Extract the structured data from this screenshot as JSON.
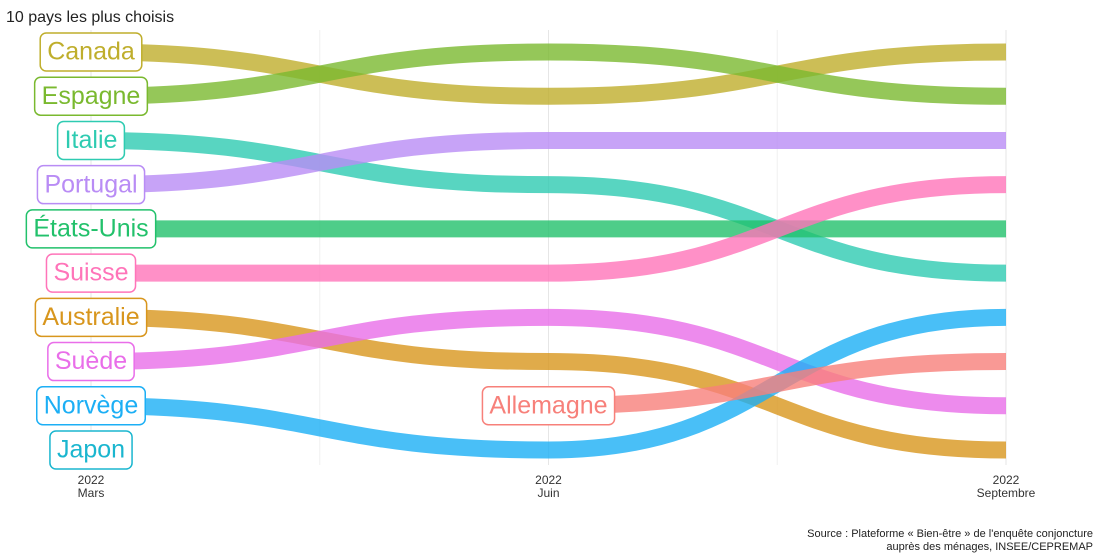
{
  "chart_data": {
    "type": "bump",
    "title": "10 pays les plus choisis",
    "categories": [
      "Mars",
      "Juin",
      "Septembre"
    ],
    "category_years": [
      "2022",
      "2022",
      "2022"
    ],
    "ylim": [
      0.5,
      10.5
    ],
    "series": [
      {
        "name": "Canada",
        "color": "#bfae2c",
        "values": [
          1,
          2,
          1
        ]
      },
      {
        "name": "Espagne",
        "color": "#7ab92f",
        "values": [
          2,
          1,
          2
        ]
      },
      {
        "name": "Italie",
        "color": "#2ecbb1",
        "values": [
          3,
          4,
          6
        ]
      },
      {
        "name": "Portugal",
        "color": "#b98cf5",
        "values": [
          4,
          3,
          3
        ]
      },
      {
        "name": "États-Unis",
        "color": "#22c16b",
        "values": [
          5,
          5,
          5
        ]
      },
      {
        "name": "Suisse",
        "color": "#ff74b9",
        "values": [
          6,
          6,
          4
        ]
      },
      {
        "name": "Australie",
        "color": "#d8961d",
        "values": [
          7,
          8,
          10
        ]
      },
      {
        "name": "Suède",
        "color": "#e96ee9",
        "values": [
          8,
          7,
          9
        ]
      },
      {
        "name": "Norvège",
        "color": "#1caff5",
        "values": [
          9,
          10,
          7
        ]
      },
      {
        "name": "Japon",
        "color": "#1ab6cf",
        "values": [
          10,
          null,
          null
        ]
      },
      {
        "name": "Allemagne",
        "color": "#f7807a",
        "values": [
          null,
          9,
          8
        ]
      }
    ],
    "source": [
      "Source : Plateforme « Bien-être » de l'enquête conjoncture",
      "auprès des ménages, INSEE/CEPREMAP"
    ]
  }
}
